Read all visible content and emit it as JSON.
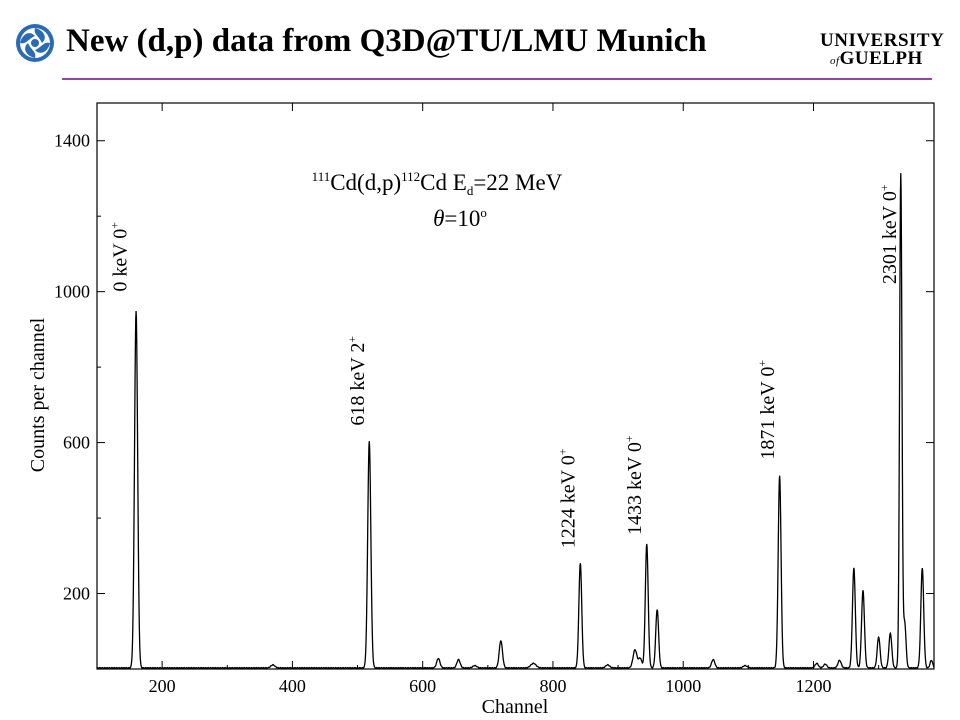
{
  "header": {
    "title": "New (d,p) data from Q3D@TU/LMU Munich",
    "logo_line1": "UNIVERSITY",
    "logo_of": "of",
    "logo_line2": "GUELPH",
    "rule_color": "#a03cb4"
  },
  "icons": {
    "logo": "swirl-logo-icon"
  },
  "chart_data": {
    "type": "line",
    "xlabel": "Channel",
    "ylabel": "Counts per channel",
    "xlim": [
      100,
      1385
    ],
    "ylim": [
      0,
      1500
    ],
    "xticks": [
      200,
      400,
      600,
      800,
      1000,
      1200
    ],
    "yticks": [
      200,
      600,
      1000,
      1400
    ],
    "grid": false,
    "reaction": {
      "a1": "111",
      "b1": "Cd(d,p)",
      "a2": "112",
      "b2": "Cd E",
      "sub": "d",
      "rest": "=22 MeV"
    },
    "angle": {
      "sym": "θ",
      "eq": "=10",
      "sup": "o"
    },
    "baseline": 3,
    "peaks": [
      {
        "x": 160,
        "y": 945,
        "w": 2.4
      },
      {
        "x": 370,
        "y": 8,
        "w": 3
      },
      {
        "x": 518,
        "y": 600,
        "w": 2.4
      },
      {
        "x": 624,
        "y": 25,
        "w": 2.5
      },
      {
        "x": 655,
        "y": 22,
        "w": 2.5
      },
      {
        "x": 680,
        "y": 6,
        "w": 3
      },
      {
        "x": 720,
        "y": 72,
        "w": 2.5
      },
      {
        "x": 770,
        "y": 12,
        "w": 4
      },
      {
        "x": 842,
        "y": 278,
        "w": 2.2
      },
      {
        "x": 884,
        "y": 8,
        "w": 3
      },
      {
        "x": 926,
        "y": 48,
        "w": 3
      },
      {
        "x": 934,
        "y": 25,
        "w": 2.5
      },
      {
        "x": 944,
        "y": 328,
        "w": 2.2
      },
      {
        "x": 960,
        "y": 155,
        "w": 2.2
      },
      {
        "x": 1046,
        "y": 22,
        "w": 2.5
      },
      {
        "x": 1095,
        "y": 6,
        "w": 3
      },
      {
        "x": 1148,
        "y": 510,
        "w": 2.2
      },
      {
        "x": 1205,
        "y": 12,
        "w": 2.5
      },
      {
        "x": 1218,
        "y": 10,
        "w": 2.5
      },
      {
        "x": 1240,
        "y": 20,
        "w": 2.5
      },
      {
        "x": 1262,
        "y": 265,
        "w": 2.2
      },
      {
        "x": 1276,
        "y": 205,
        "w": 2.2
      },
      {
        "x": 1300,
        "y": 82,
        "w": 2.2
      },
      {
        "x": 1318,
        "y": 92,
        "w": 2.2
      },
      {
        "x": 1334,
        "y": 1310,
        "w": 1.8
      },
      {
        "x": 1340,
        "y": 120,
        "w": 2
      },
      {
        "x": 1367,
        "y": 265,
        "w": 2.2
      },
      {
        "x": 1381,
        "y": 20,
        "w": 2
      }
    ],
    "annotations": [
      {
        "x": 145,
        "y": 1000,
        "label": "0 keV 0",
        "sup": "+"
      },
      {
        "x": 510,
        "y": 645,
        "label": "618 keV 2",
        "sup": "+"
      },
      {
        "x": 833,
        "y": 320,
        "label": "1224 keV 0",
        "sup": "+"
      },
      {
        "x": 935,
        "y": 355,
        "label": "1433 keV 0",
        "sup": "+"
      },
      {
        "x": 1139,
        "y": 555,
        "label": "1871 keV 0",
        "sup": "+"
      },
      {
        "x": 1327,
        "y": 1020,
        "label": "2301 keV 0",
        "sup": "+"
      }
    ]
  }
}
